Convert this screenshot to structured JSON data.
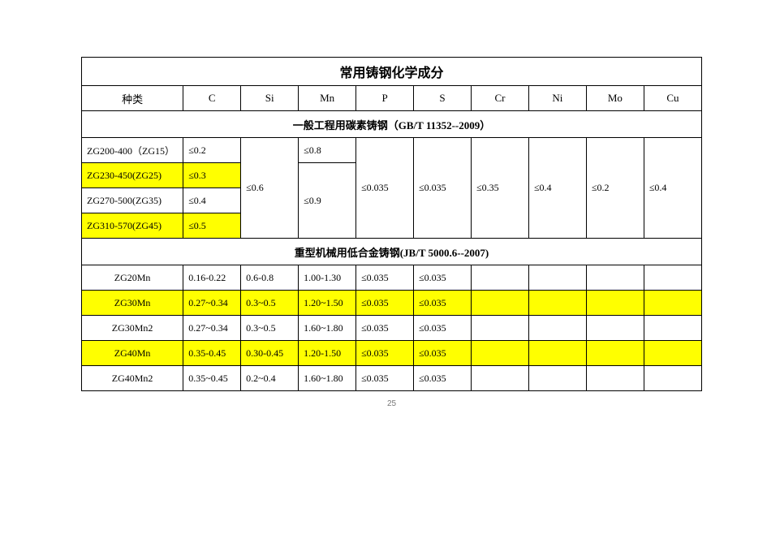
{
  "title": "常用铸钢化学成分",
  "columns": [
    "种类",
    "C",
    "Si",
    "Mn",
    "P",
    "S",
    "Cr",
    "Ni",
    "Mo",
    "Cu"
  ],
  "section1": {
    "heading": "一般工程用碳素铸钢（GB/T 11352--2009）",
    "shared": {
      "Si": "≤0.6",
      "Mn_b": "≤0.9",
      "P": "≤0.035",
      "S": "≤0.035",
      "Cr": "≤0.35",
      "Ni": "≤0.4",
      "Mo": "≤0.2",
      "Cu": "≤0.4"
    },
    "rows": [
      {
        "type": "ZG200-400（ZG15）",
        "C": "≤0.2",
        "Mn": "≤0.8",
        "hl": false
      },
      {
        "type": "ZG230-450(ZG25)",
        "C": "≤0.3",
        "Mn": "",
        "hl": true
      },
      {
        "type": "ZG270-500(ZG35)",
        "C": "≤0.4",
        "Mn": "",
        "hl": false
      },
      {
        "type": "ZG310-570(ZG45)",
        "C": "≤0.5",
        "Mn": "",
        "hl": true
      }
    ]
  },
  "section2": {
    "heading": "重型机械用低合金铸钢(JB/T 5000.6--2007)",
    "rows": [
      {
        "type": "ZG20Mn",
        "C": "0.16-0.22",
        "Si": "0.6-0.8",
        "Mn": "1.00-1.30",
        "P": "≤0.035",
        "S": "≤0.035",
        "hl": false
      },
      {
        "type": "ZG30Mn",
        "C": "0.27~0.34",
        "Si": "0.3~0.5",
        "Mn": "1.20~1.50",
        "P": "≤0.035",
        "S": "≤0.035",
        "hl": true
      },
      {
        "type": "ZG30Mn2",
        "C": "0.27~0.34",
        "Si": "0.3~0.5",
        "Mn": "1.60~1.80",
        "P": "≤0.035",
        "S": "≤0.035",
        "hl": false
      },
      {
        "type": "ZG40Mn",
        "C": "0.35-0.45",
        "Si": "0.30-0.45",
        "Mn": "1.20-1.50",
        "P": "≤0.035",
        "S": "≤0.035",
        "hl": true
      },
      {
        "type": "ZG40Mn2",
        "C": "0.35~0.45",
        "Si": "0.2~0.4",
        "Mn": "1.60~1.80",
        "P": "≤0.035",
        "S": "≤0.035",
        "hl": false
      }
    ]
  },
  "page_number": "25",
  "colors": {
    "highlight": "#ffff00",
    "border": "#000000",
    "background": "#ffffff"
  }
}
